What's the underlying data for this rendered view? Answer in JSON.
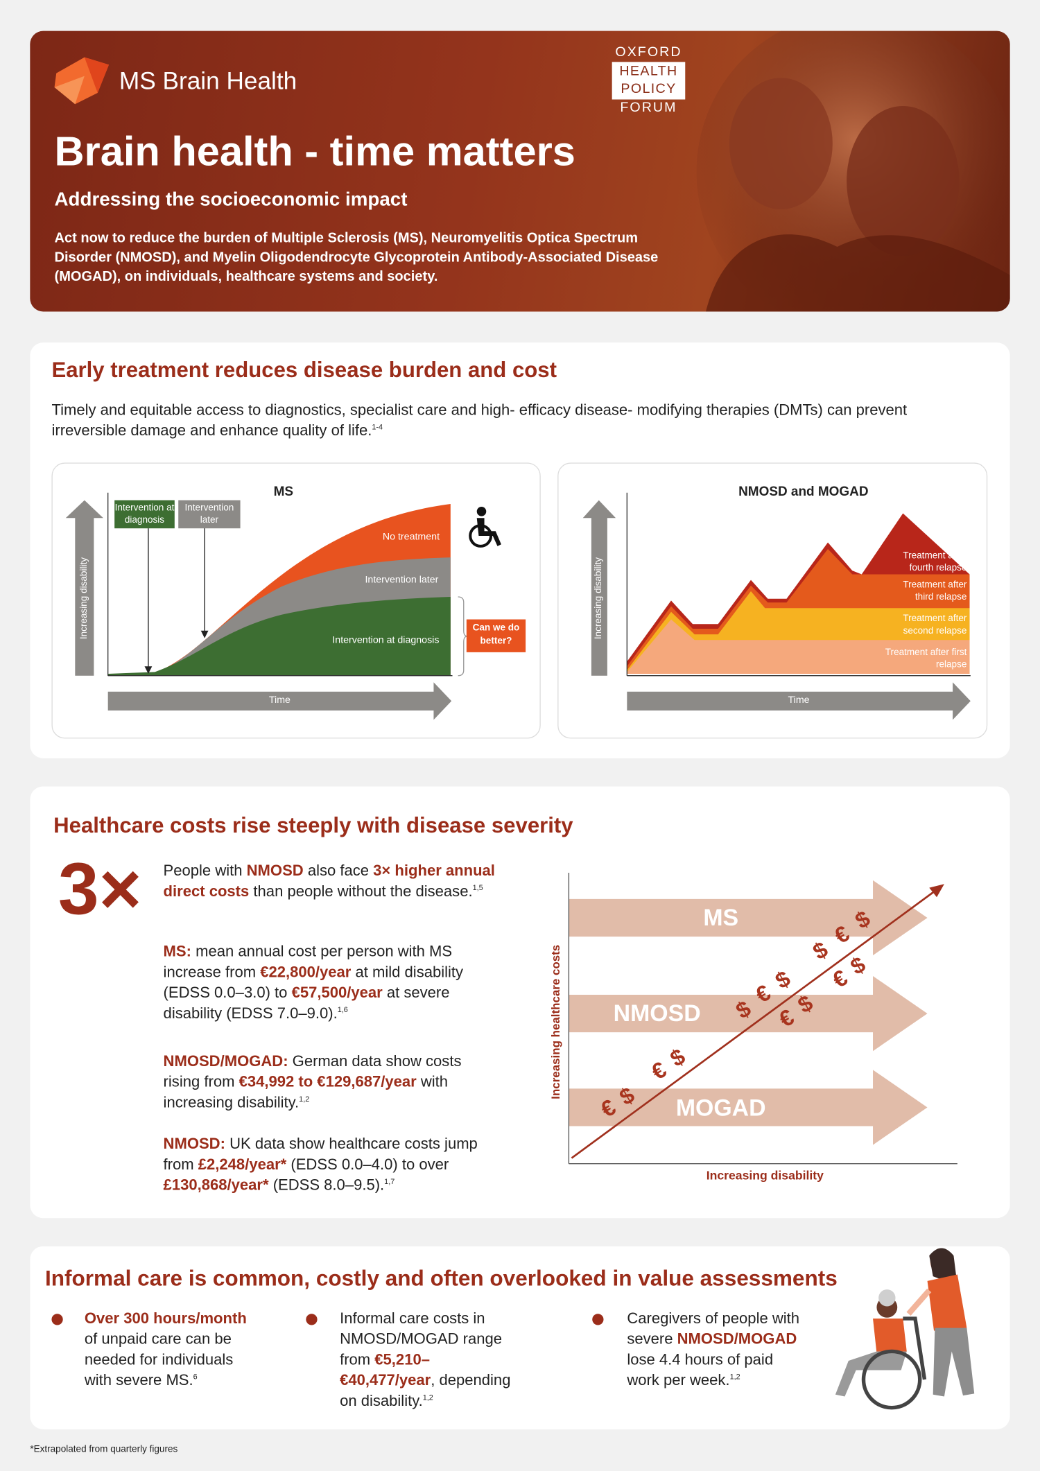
{
  "header": {
    "logo": "MS Brain Health",
    "partner": [
      "OXFORD",
      "HEALTH",
      "POLICY",
      "FORUM"
    ],
    "title": "Brain health - time matters",
    "subtitle": "Addressing the socioeconomic impact",
    "intro": [
      {
        "text": "Act now to reduce the burden of Multiple Sclerosis ("
      },
      {
        "text": "MS",
        "style": "bold"
      },
      {
        "text": "), Neuromyelitis Optica Spectrum Disorder ("
      },
      {
        "text": "NMOSD",
        "style": "bold"
      },
      {
        "text": "), and Myelin Oligodendrocyte Glycoprotein Antibody-Associated Disease ("
      },
      {
        "text": "MOGAD",
        "style": "bold"
      },
      {
        "text": "), on individuals, healthcare systems and society."
      }
    ]
  },
  "early_treatment": {
    "title": "Early treatment reduces disease burden and cost",
    "text": [
      {
        "text": "Timely and equitable access to diagnostics, specialist care and high- efficacy disease- modifying therapies (DMTs) can prevent irreversible damage and enhance quality of life."
      },
      {
        "text": "1-4",
        "style": "sup"
      }
    ],
    "ms_diagram": {
      "title": "MS",
      "y_axis": "Increasing disability",
      "x_axis": "Time",
      "callouts": [
        "Intervention at diagnosis",
        "Intervention later"
      ],
      "areas": [
        "No treatment",
        "Intervention later",
        "Intervention at diagnosis"
      ],
      "question": "Can we do better?"
    },
    "nmosd_diagram": {
      "title": "NMOSD and MOGAD",
      "y_axis": "Increasing disability",
      "x_axis": "Time",
      "areas": [
        "Treatment after fourth relapse",
        "Treatment after third relapse",
        "Treatment after second relapse",
        "Treatment after first relapse"
      ]
    }
  },
  "costs": {
    "title": "Healthcare costs rise steeply with disease severity",
    "stat": "3×",
    "paragraphs": [
      [
        {
          "text": "People with "
        },
        {
          "text": "NMOSD",
          "style": "bold"
        },
        {
          "text": " also face "
        },
        {
          "text": "3× higher annual direct costs",
          "style": "bold"
        },
        {
          "text": " than people without the disease."
        },
        {
          "text": "1,5",
          "style": "sup"
        }
      ],
      [
        {
          "text": "MS:",
          "style": "bold"
        },
        {
          "text": " mean annual cost per person with MS increase from "
        },
        {
          "text": "€22,800/year",
          "style": "bold"
        },
        {
          "text": " at mild disability (EDSS 0.0–3.0) to "
        },
        {
          "text": "€57,500/year",
          "style": "bold"
        },
        {
          "text": " at severe disability (EDSS 7.0–9.0)."
        },
        {
          "text": "1,6",
          "style": "sup"
        }
      ],
      [
        {
          "text": "NMOSD/MOGAD:",
          "style": "bold"
        },
        {
          "text": " German data show costs rising from "
        },
        {
          "text": "€34,992 to €129,687/year",
          "style": "bold"
        },
        {
          "text": " with increasing disability."
        },
        {
          "text": "1,2",
          "style": "sup"
        }
      ],
      [
        {
          "text": "NMOSD:",
          "style": "bold"
        },
        {
          "text": " UK data show healthcare costs jump from "
        },
        {
          "text": "£2,248/year*",
          "style": "bold"
        },
        {
          "text": " (EDSS 0.0–4.0) to over "
        },
        {
          "text": "£130,868/year*",
          "style": "bold"
        },
        {
          "text": " (EDSS 8.0–9.5)."
        },
        {
          "text": "1,7",
          "style": "sup"
        }
      ]
    ],
    "diagram": {
      "y_axis": "Increasing healthcare costs",
      "x_axis": "Increasing disability",
      "arrows": [
        "MS",
        "NMOSD",
        "MOGAD"
      ],
      "currency_marks": [
        "€",
        "$",
        "€",
        "$",
        "$",
        "€",
        "$",
        "€",
        "$",
        "$",
        "€",
        "$",
        "€",
        "$"
      ]
    }
  },
  "informal_care": {
    "title": "Informal care is common, costly and often overlooked in value assessments",
    "items": [
      [
        {
          "text": "Over 300 hours/month",
          "style": "bold"
        },
        {
          "text": " of unpaid care can be needed for individuals with severe MS."
        },
        {
          "text": "6",
          "style": "sup"
        }
      ],
      [
        {
          "text": "Informal care costs in NMOSD/MOGAD range from "
        },
        {
          "text": "€5,210–€40,477/year",
          "style": "bold"
        },
        {
          "text": ", depending on disability."
        },
        {
          "text": "1,2",
          "style": "sup"
        }
      ],
      [
        {
          "text": "Caregivers of people with severe "
        },
        {
          "text": "NMOSD/MOGAD",
          "style": "bold"
        },
        {
          "text": " lose 4.4 hours of paid work per week."
        },
        {
          "text": "1,2",
          "style": "sup"
        }
      ]
    ]
  },
  "footnote": "*Extrapolated from quarterly figures"
}
